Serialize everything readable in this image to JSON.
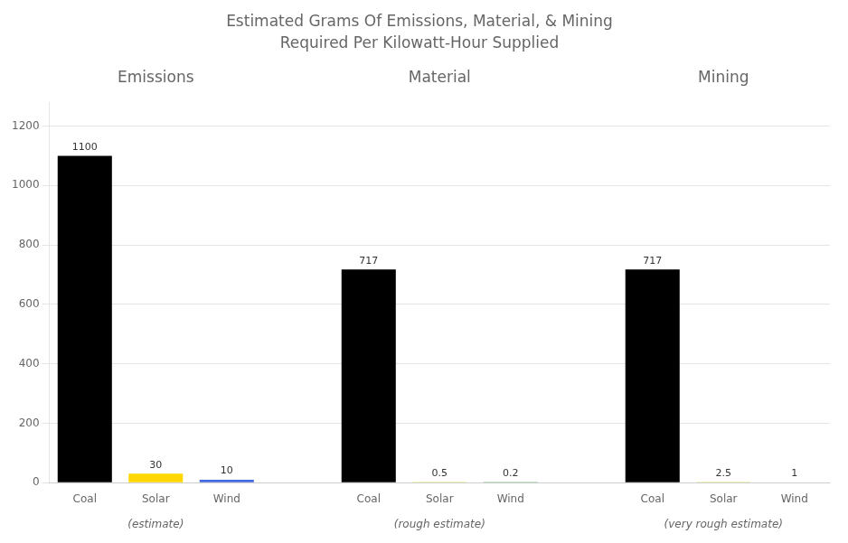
{
  "chart_data": {
    "type": "bar",
    "title": "Estimated Grams Of Emissions, Material, & Mining",
    "subtitle": "Required Per Kilowatt-Hour Supplied",
    "groups": [
      {
        "label": "Emissions",
        "sublabel": "(estimate)",
        "categories": [
          "Coal",
          "Solar",
          "Wind"
        ],
        "values": [
          1100,
          30,
          10
        ],
        "colors": [
          "#000000",
          "#FFD700",
          "#4169E1"
        ]
      },
      {
        "label": "Material",
        "sublabel": "(rough estimate)",
        "categories": [
          "Coal",
          "Solar",
          "Wind"
        ],
        "values": [
          717,
          0.5,
          0.2
        ],
        "colors": [
          "#000000",
          "#CCCC00",
          "#228B22"
        ]
      },
      {
        "label": "Mining",
        "sublabel": "(very rough estimate)",
        "categories": [
          "Coal",
          "Solar",
          "Wind"
        ],
        "values": [
          717,
          2.5,
          1
        ],
        "colors": [
          "#000000",
          "#CCCC00",
          "#228B22"
        ]
      }
    ],
    "ylim": [
      0,
      1280
    ],
    "yticks": [
      0,
      200,
      400,
      600,
      800,
      1000,
      1200
    ],
    "grid": true,
    "data_labels": true
  }
}
